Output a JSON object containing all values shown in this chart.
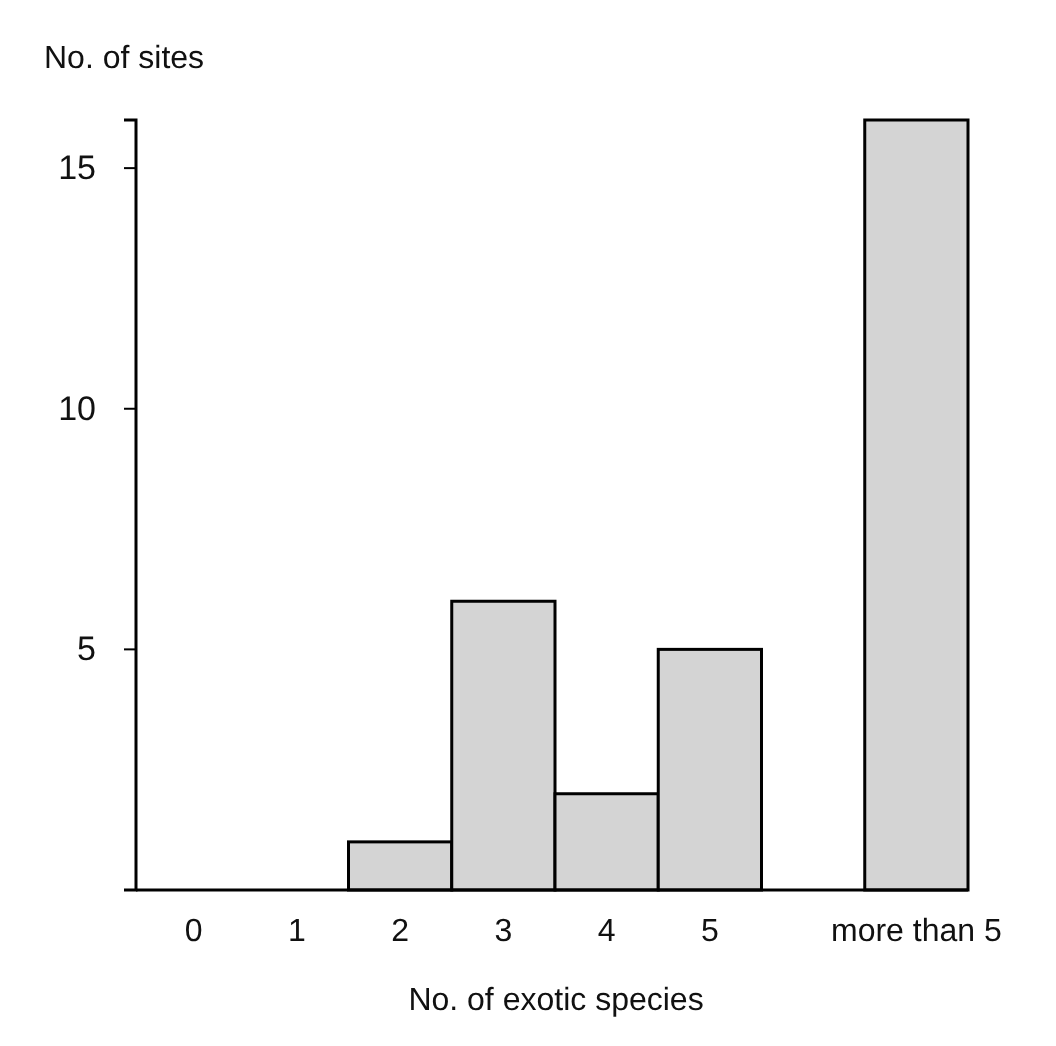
{
  "chart_data": {
    "type": "bar",
    "xlabel": "No. of exotic species",
    "ylabel": "No. of sites",
    "categories": [
      "0",
      "1",
      "2",
      "3",
      "4",
      "5",
      null,
      "more than 5"
    ],
    "values": [
      0,
      0,
      1,
      6,
      2,
      5,
      null,
      16
    ],
    "color": "#d4d4d4",
    "ylim": [
      0,
      16
    ],
    "yticks": [
      5,
      10,
      15
    ]
  }
}
